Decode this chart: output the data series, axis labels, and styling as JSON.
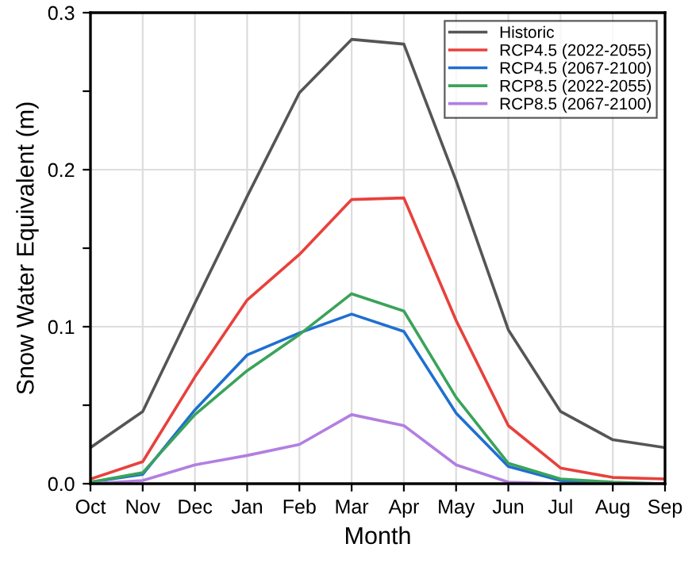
{
  "chart_data": {
    "type": "line",
    "xlabel": "Month",
    "ylabel": "Snow Water Equivalent (m)",
    "categories": [
      "Oct",
      "Nov",
      "Dec",
      "Jan",
      "Feb",
      "Mar",
      "Apr",
      "May",
      "Jun",
      "Jul",
      "Aug",
      "Sep"
    ],
    "series": [
      {
        "name": "Historic",
        "color": "#555555",
        "values": [
          0.023,
          0.046,
          0.115,
          0.183,
          0.249,
          0.283,
          0.28,
          0.193,
          0.098,
          0.046,
          0.028,
          0.023
        ]
      },
      {
        "name": "RCP4.5 (2022-2055)",
        "color": "#e8413c",
        "values": [
          0.003,
          0.014,
          0.068,
          0.117,
          0.146,
          0.181,
          0.182,
          0.104,
          0.037,
          0.01,
          0.004,
          0.003
        ]
      },
      {
        "name": "RCP4.5 (2067-2100)",
        "color": "#1f6fd0",
        "values": [
          0.001,
          0.006,
          0.047,
          0.082,
          0.096,
          0.108,
          0.097,
          0.045,
          0.011,
          0.002,
          0.0,
          0.0
        ]
      },
      {
        "name": "RCP8.5 (2022-2055)",
        "color": "#3aa35a",
        "values": [
          0.001,
          0.007,
          0.044,
          0.072,
          0.095,
          0.121,
          0.11,
          0.055,
          0.013,
          0.003,
          0.001,
          0.0
        ]
      },
      {
        "name": "RCP8.5 (2067-2100)",
        "color": "#b27fe0",
        "values": [
          0.0,
          0.002,
          0.012,
          0.018,
          0.025,
          0.044,
          0.037,
          0.012,
          0.001,
          0.0,
          0.0,
          0.0
        ]
      }
    ],
    "ylim": [
      0,
      0.3
    ],
    "yticks": [
      {
        "value": 0,
        "label": "0.0"
      },
      {
        "value": 0.05,
        "label": null
      },
      {
        "value": 0.1,
        "label": "0.1"
      },
      {
        "value": 0.15,
        "label": null
      },
      {
        "value": 0.2,
        "label": "0.2"
      },
      {
        "value": 0.25,
        "label": null
      },
      {
        "value": 0.3,
        "label": "0.3"
      }
    ],
    "grid": true,
    "legend": "top right",
    "marker": "none",
    "line_style": "solid"
  }
}
